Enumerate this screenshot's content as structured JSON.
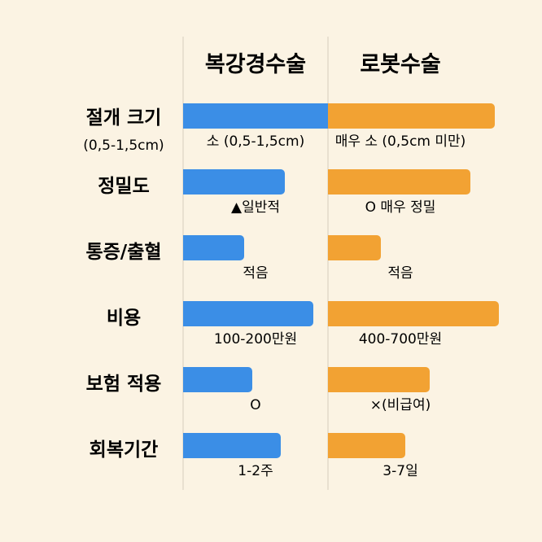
{
  "chart_data": {
    "type": "bar",
    "title": "",
    "series": [
      {
        "name": "복강경수술",
        "color": "#3b8ee6",
        "values": [
          0.4,
          0.25,
          0.15,
          0.32,
          0.17,
          0.24
        ],
        "labels": [
          "소 (0,5-1,5cm)",
          "▲일반적",
          "적음",
          "100-200만원",
          "O",
          "1-2주"
        ]
      },
      {
        "name": "로봇수술",
        "color": "#f2a233",
        "values": [
          0.41,
          0.35,
          0.13,
          0.42,
          0.25,
          0.19
        ],
        "labels": [
          "매우 소 (0,5cm 미만)",
          "O 매우 정밀",
          "적음",
          "400-700만원",
          "×(비급여)",
          "3-7일"
        ]
      }
    ],
    "categories": [
      {
        "label": "절개 크기",
        "sub": "(0,5-1,5cm)"
      },
      {
        "label": "정밀도",
        "sub": ""
      },
      {
        "label": "통증/출혈",
        "sub": ""
      },
      {
        "label": "비용",
        "sub": ""
      },
      {
        "label": "보험 적용",
        "sub": ""
      },
      {
        "label": "회복기간",
        "sub": ""
      }
    ]
  }
}
